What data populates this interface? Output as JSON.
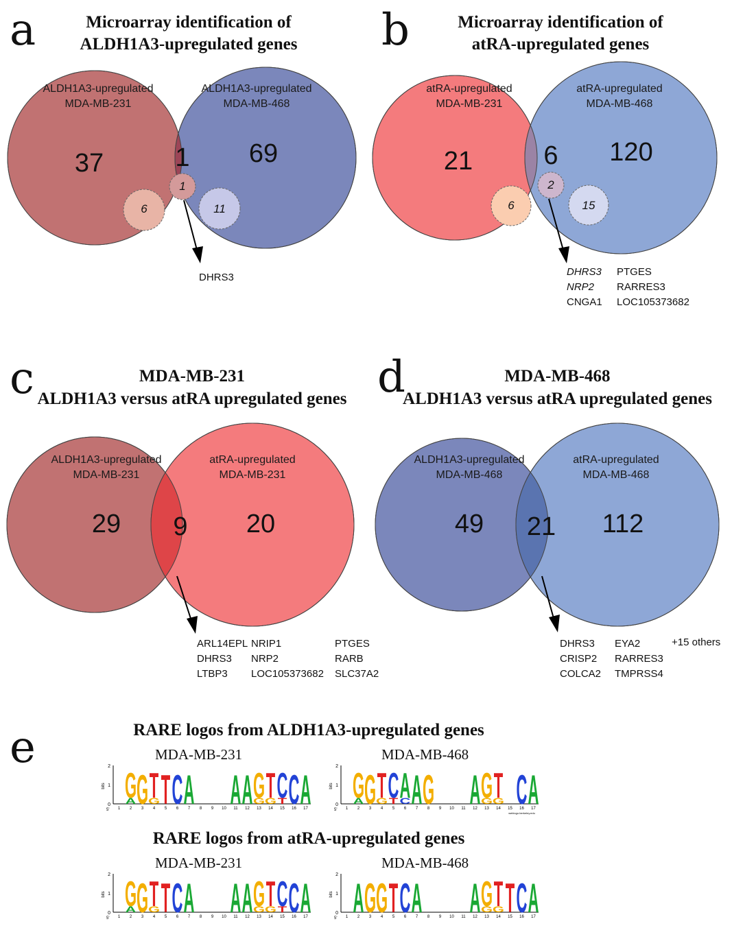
{
  "panels": [
    {
      "letter": "a",
      "title_line1": "Microarray identification of",
      "title_line2": "ALDH1A3-upregulated genes",
      "left_label_1": "ALDH1A3-upregulated",
      "left_label_2": "MDA-MB-231",
      "right_label_1": "ALDH1A3-upregulated",
      "right_label_2": "MDA-MB-468",
      "left_count": "37",
      "overlap_count": "1",
      "right_count": "69",
      "left_sub": "6",
      "overlap_sub": "1",
      "right_sub": "11",
      "genes": [
        "DHRS3"
      ]
    },
    {
      "letter": "b",
      "title_line1": "Microarray identification of",
      "title_line2": "atRA-upregulated genes",
      "left_label_1": "atRA-upregulated",
      "left_label_2": "MDA-MB-231",
      "right_label_1": "atRA-upregulated",
      "right_label_2": "MDA-MB-468",
      "left_count": "21",
      "overlap_count": "6",
      "right_count": "120",
      "left_sub": "6",
      "overlap_sub": "2",
      "right_sub": "15",
      "genes_col1": [
        "DHRS3",
        "NRP2",
        "CNGA1"
      ],
      "genes_col2": [
        "PTGES",
        "RARRES3",
        "LOC105373682"
      ]
    },
    {
      "letter": "c",
      "title_line1": "MDA-MB-231",
      "title_line2": "ALDH1A3 versus atRA upregulated genes",
      "left_label_1": "ALDH1A3-upregulated",
      "left_label_2": "MDA-MB-231",
      "right_label_1": "atRA-upregulated",
      "right_label_2": "MDA-MB-231",
      "left_count": "29",
      "overlap_count": "9",
      "right_count": "20",
      "genes_col1": [
        "ARL14EPL",
        "DHRS3",
        "LTBP3"
      ],
      "genes_col2": [
        "NRIP1",
        "NRP2",
        "LOC105373682"
      ],
      "genes_col3": [
        "PTGES",
        "RARB",
        "SLC37A2"
      ]
    },
    {
      "letter": "d",
      "title_line1": "MDA-MB-468",
      "title_line2": "ALDH1A3 versus atRA upregulated genes",
      "left_label_1": "ALDH1A3-upregulated",
      "left_label_2": "MDA-MB-468",
      "right_label_1": "atRA-upregulated",
      "right_label_2": "MDA-MB-468",
      "left_count": "49",
      "overlap_count": "21",
      "right_count": "112",
      "genes_col1": [
        "DHRS3",
        "CRISP2",
        "COLCA2"
      ],
      "genes_col2": [
        "EYA2",
        "RARRES3",
        "TMPRSS4"
      ],
      "others": "+15 others"
    }
  ],
  "panel_e": {
    "letter": "e",
    "title_aldh": "RARE logos from ALDH1A3-upregulated genes",
    "title_atra": "RARE logos from atRA-upregulated genes",
    "sub_231": "MDA-MB-231",
    "sub_468": "MDA-MB-468",
    "ylabel": "bits",
    "y_ticks": [
      "0",
      "1",
      "2"
    ],
    "x_ticks": [
      "1",
      "2",
      "3",
      "4",
      "5",
      "6",
      "7",
      "8",
      "9",
      "10",
      "11",
      "12",
      "13",
      "14",
      "15",
      "16",
      "17"
    ],
    "five_prime": "5'",
    "three_prime": "3'",
    "credit": "weblogo.berkeley.edu",
    "logos": [
      {
        "label": "aldh-231",
        "stacks": [
          "",
          "AG",
          "G",
          "GT",
          "T",
          "C",
          "A",
          "",
          "",
          "",
          "A",
          "A",
          "GG",
          "GT",
          "TC",
          "C",
          "A"
        ]
      },
      {
        "label": "aldh-468",
        "stacks": [
          "",
          "AG",
          "G",
          "GT",
          "TC",
          "CA",
          "A",
          "G",
          "",
          "",
          "",
          "A",
          "GG",
          "GT",
          "",
          "C",
          "A"
        ]
      },
      {
        "label": "atra-231",
        "stacks": [
          "",
          "AG",
          "G",
          "GT",
          "T",
          "C",
          "A",
          "",
          "",
          "",
          "A",
          "A",
          "GG",
          "GT",
          "TC",
          "C",
          "A"
        ]
      },
      {
        "label": "atra-468",
        "stacks": [
          "",
          "A",
          "G",
          "G",
          "T",
          "C",
          "A",
          "",
          "",
          "",
          "",
          "A",
          "GG",
          "GT",
          "T",
          "C",
          "A"
        ]
      }
    ]
  },
  "colors": {
    "aldh231": "#c17272",
    "aldh468": "#7b87bb",
    "atra231": "#f47b7d",
    "atra468": "#8ea7d6",
    "overlap_a": "#9c4557",
    "overlap_b": "#9b83a5",
    "overlap_c": "#de4548",
    "overlap_d": "#5a74b0",
    "nuc_A": "#1aa834",
    "nuc_C": "#2243d6",
    "nuc_G": "#f3ae00",
    "nuc_T": "#e12121"
  }
}
